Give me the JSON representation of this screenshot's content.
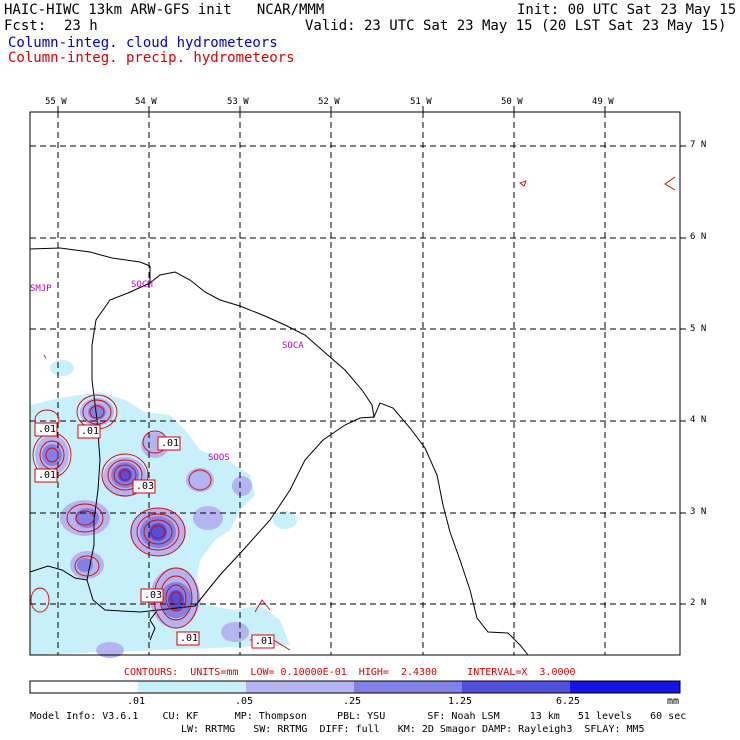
{
  "header": {
    "title_left": "HAIC-HIWC 13km ARW-GFS init   NCAR/MMM",
    "init": "Init: 00 UTC Sat 23 May 15",
    "fcst_label": "Fcst:",
    "fcst_value": "23 h",
    "valid": "Valid: 23 UTC Sat 23 May 15 (20 LST Sat 23 May 15)",
    "field1": "Column-integ. cloud hydrometeors",
    "field2": "Column-integ. precip. hydrometeors"
  },
  "axes": {
    "lon_labels": [
      "55 W",
      "54 W",
      "53 W",
      "52 W",
      "51 W",
      "50 W",
      "49 W"
    ],
    "lat_labels": [
      "7 N",
      "6 N",
      "5 N",
      "4 N",
      "3 N",
      "2 N"
    ]
  },
  "stations": [
    "SMJP",
    "SOCM",
    "SOCA",
    "SOOS"
  ],
  "contour_labels": [
    ".01",
    ".01",
    ".01",
    ".01",
    ".03",
    ".03",
    ".01",
    ".01"
  ],
  "contours_info": "CONTOURS:  UNITS=mm  LOW= 0.10000E-01  HIGH=  2.4300     INTERVAL=X  3.0000",
  "colorbar": {
    "ticks": [
      ".01",
      ".05",
      ".25",
      "1.25",
      "6.25"
    ],
    "unit": "mm",
    "colors": [
      "#ffffff",
      "#c8f0fa",
      "#b4b4f0",
      "#8282e6",
      "#5050dc",
      "#1414e6"
    ]
  },
  "model_info": {
    "line1": "Model Info: V3.6.1    CU: KF      MP: Thompson     PBL: YSU       SF: Noah LSM     13 km   51 levels   60 sec",
    "line2": "LW: RRTMG   SW: RRTMG  DIFF: full   KM: 2D Smagor DAMP: Rayleigh3  SFLAY: MM5"
  },
  "colors": {
    "cloud": "#0000c8",
    "precip": "#dc0000",
    "station": "#c000c0"
  }
}
